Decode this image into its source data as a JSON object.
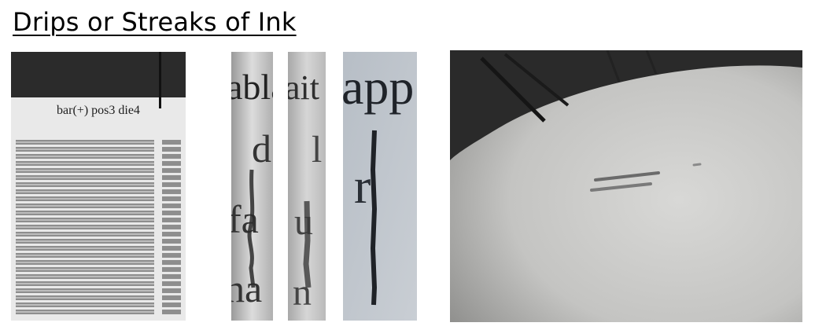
{
  "page": {
    "title": "Drips or Streaks of Ink"
  },
  "panel_sheet": {
    "label": "bar(+) pos3 die4"
  },
  "panel_closeup_1": {
    "glyphs": [
      "ablait",
      "d",
      "fa",
      "ha"
    ]
  },
  "panel_closeup_2": {
    "glyphs": [
      "ait",
      "l",
      "u",
      "n"
    ]
  },
  "panel_closeup_3": {
    "glyphs": [
      "app",
      "r"
    ]
  },
  "colors": {
    "ink": "#1a1a1a",
    "paper": "#e6e6e6",
    "streak": "#4a4a4a"
  }
}
